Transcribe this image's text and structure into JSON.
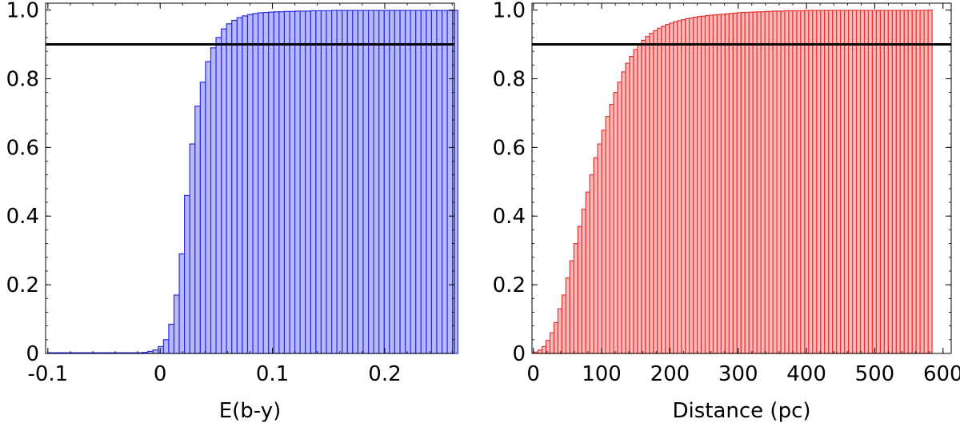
{
  "chart_data": [
    {
      "type": "bar",
      "histtype": "cumulative",
      "xlabel": "E(b-y)",
      "ylabel": "",
      "xlim": [
        -0.102,
        0.262
      ],
      "ylim": [
        0,
        1.02
      ],
      "xticks": [
        -0.1,
        0,
        0.1,
        0.2
      ],
      "xtick_labels": [
        "-0.1",
        "0",
        "0.1",
        "0.2"
      ],
      "yticks": [
        0,
        0.2,
        0.4,
        0.6,
        0.8,
        1.0
      ],
      "ytick_labels": [
        "0",
        "0.2",
        "0.4",
        "0.6",
        "0.8",
        "1.0"
      ],
      "hline": 0.9,
      "bin_start": -0.1,
      "bin_width": 0.00468,
      "values": [
        0.002,
        0.002,
        0.002,
        0.002,
        0.002,
        0.002,
        0.002,
        0.002,
        0.002,
        0.002,
        0.002,
        0.002,
        0.002,
        0.002,
        0.002,
        0.002,
        0.002,
        0.002,
        0.003,
        0.006,
        0.01,
        0.02,
        0.04,
        0.085,
        0.17,
        0.29,
        0.46,
        0.61,
        0.72,
        0.79,
        0.85,
        0.89,
        0.92,
        0.945,
        0.96,
        0.97,
        0.978,
        0.983,
        0.987,
        0.99,
        0.992,
        0.993,
        0.994,
        0.995,
        0.995,
        0.996,
        0.996,
        0.997,
        0.997,
        0.997,
        0.998,
        0.998,
        0.998,
        0.998,
        0.999,
        0.999,
        0.999,
        0.999,
        0.999,
        0.999,
        0.999,
        0.999,
        0.999,
        0.999,
        0.999,
        0.999,
        0.999,
        0.999,
        0.999,
        0.999,
        0.999,
        0.999,
        0.999,
        0.999,
        0.999,
        0.999,
        0.999,
        0.999
      ],
      "face_color": "#b8b8ff",
      "edge_color": "#2a2ae8"
    },
    {
      "type": "bar",
      "histtype": "cumulative",
      "xlabel": "Distance (pc)",
      "ylabel": "",
      "xlim": [
        -2,
        612
      ],
      "ylim": [
        0,
        1.02
      ],
      "xticks": [
        0,
        100,
        200,
        300,
        400,
        500,
        600
      ],
      "xtick_labels": [
        "0",
        "100",
        "200",
        "300",
        "400",
        "500",
        "600"
      ],
      "yticks": [
        0,
        0.2,
        0.4,
        0.6,
        0.8,
        1.0
      ],
      "ytick_labels": [
        "0",
        "0.2",
        "0.4",
        "0.6",
        "0.8",
        "1.0"
      ],
      "hline": 0.9,
      "bin_start": 1,
      "bin_width": 5.83,
      "values": [
        0.004,
        0.01,
        0.02,
        0.038,
        0.06,
        0.09,
        0.13,
        0.17,
        0.22,
        0.27,
        0.32,
        0.37,
        0.42,
        0.47,
        0.52,
        0.57,
        0.61,
        0.65,
        0.69,
        0.725,
        0.76,
        0.79,
        0.82,
        0.845,
        0.865,
        0.885,
        0.9,
        0.912,
        0.923,
        0.932,
        0.94,
        0.947,
        0.953,
        0.958,
        0.962,
        0.966,
        0.969,
        0.972,
        0.975,
        0.977,
        0.979,
        0.981,
        0.982,
        0.984,
        0.985,
        0.986,
        0.987,
        0.988,
        0.989,
        0.99,
        0.991,
        0.992,
        0.993,
        0.993,
        0.994,
        0.994,
        0.995,
        0.995,
        0.996,
        0.996,
        0.997,
        0.997,
        0.997,
        0.998,
        0.998,
        0.998,
        0.998,
        0.998,
        0.999,
        0.999,
        0.999,
        0.999,
        0.999,
        0.999,
        0.999,
        0.999,
        0.999,
        0.999,
        0.999,
        0.999,
        0.999,
        0.999,
        0.999,
        0.999,
        0.999,
        0.999,
        0.999,
        0.999,
        0.999,
        0.999,
        0.999,
        0.999,
        0.999,
        0.999,
        0.999,
        0.999,
        0.999,
        0.999,
        0.999,
        1.0
      ],
      "face_color": "#ffb8b8",
      "edge_color": "#e83030"
    }
  ]
}
